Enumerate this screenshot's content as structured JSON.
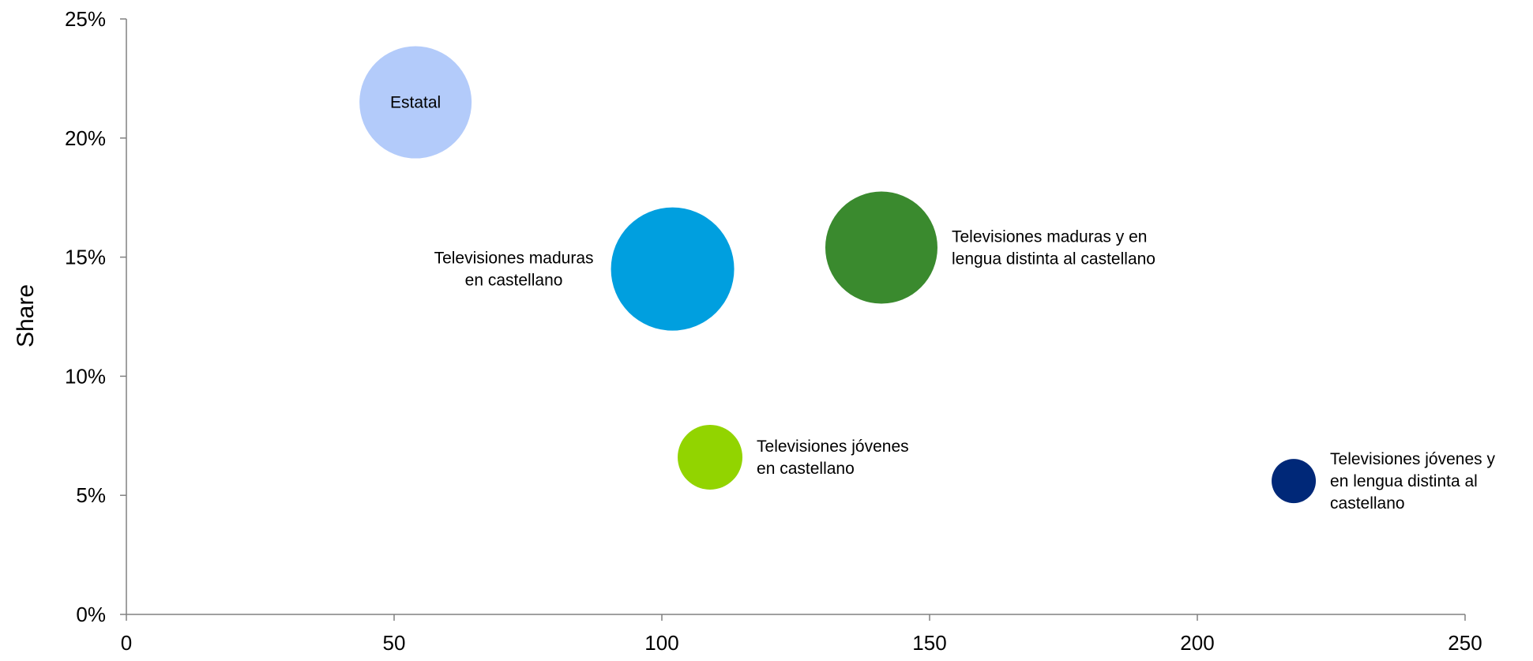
{
  "chart_data": {
    "type": "bubble",
    "title": "",
    "xlabel": "",
    "ylabel": "Share",
    "xlim": [
      0,
      250
    ],
    "ylim": [
      0,
      0.25
    ],
    "x_ticks": [
      0,
      50,
      100,
      150,
      200,
      250
    ],
    "x_tick_labels": [
      "0",
      "50",
      "100",
      "150",
      "200",
      "250"
    ],
    "y_ticks": [
      0,
      0.05,
      0.1,
      0.15,
      0.2,
      0.25
    ],
    "y_tick_labels": [
      "0%",
      "5%",
      "10%",
      "15%",
      "20%",
      "25%"
    ],
    "grid": false,
    "legend": "none",
    "points": [
      {
        "label_lines": [
          "Estatal"
        ],
        "x": 54,
        "y": 0.215,
        "size": 71,
        "color": "#b3cbfa",
        "label_color": "#002878",
        "label_position": "center"
      },
      {
        "label_lines": [
          "Televisiones maduras",
          "en castellano"
        ],
        "x": 102,
        "y": 0.145,
        "size": 78,
        "color": "#009fdf",
        "label_color": "#000000",
        "label_position": "left"
      },
      {
        "label_lines": [
          "Televisiones maduras y en",
          "lengua distinta al castellano"
        ],
        "x": 141,
        "y": 0.154,
        "size": 71,
        "color": "#3a8a2e",
        "label_color": "#000000",
        "label_position": "right"
      },
      {
        "label_lines": [
          "Televisiones jóvenes",
          "en castellano"
        ],
        "x": 109,
        "y": 0.066,
        "size": 41,
        "color": "#92d400",
        "label_color": "#000000",
        "label_position": "right"
      },
      {
        "label_lines": [
          "Televisiones jóvenes y",
          "en lengua distinta al",
          "castellano"
        ],
        "x": 218,
        "y": 0.056,
        "size": 28,
        "color": "#002878",
        "label_color": "#000000",
        "label_position": "right"
      }
    ]
  }
}
